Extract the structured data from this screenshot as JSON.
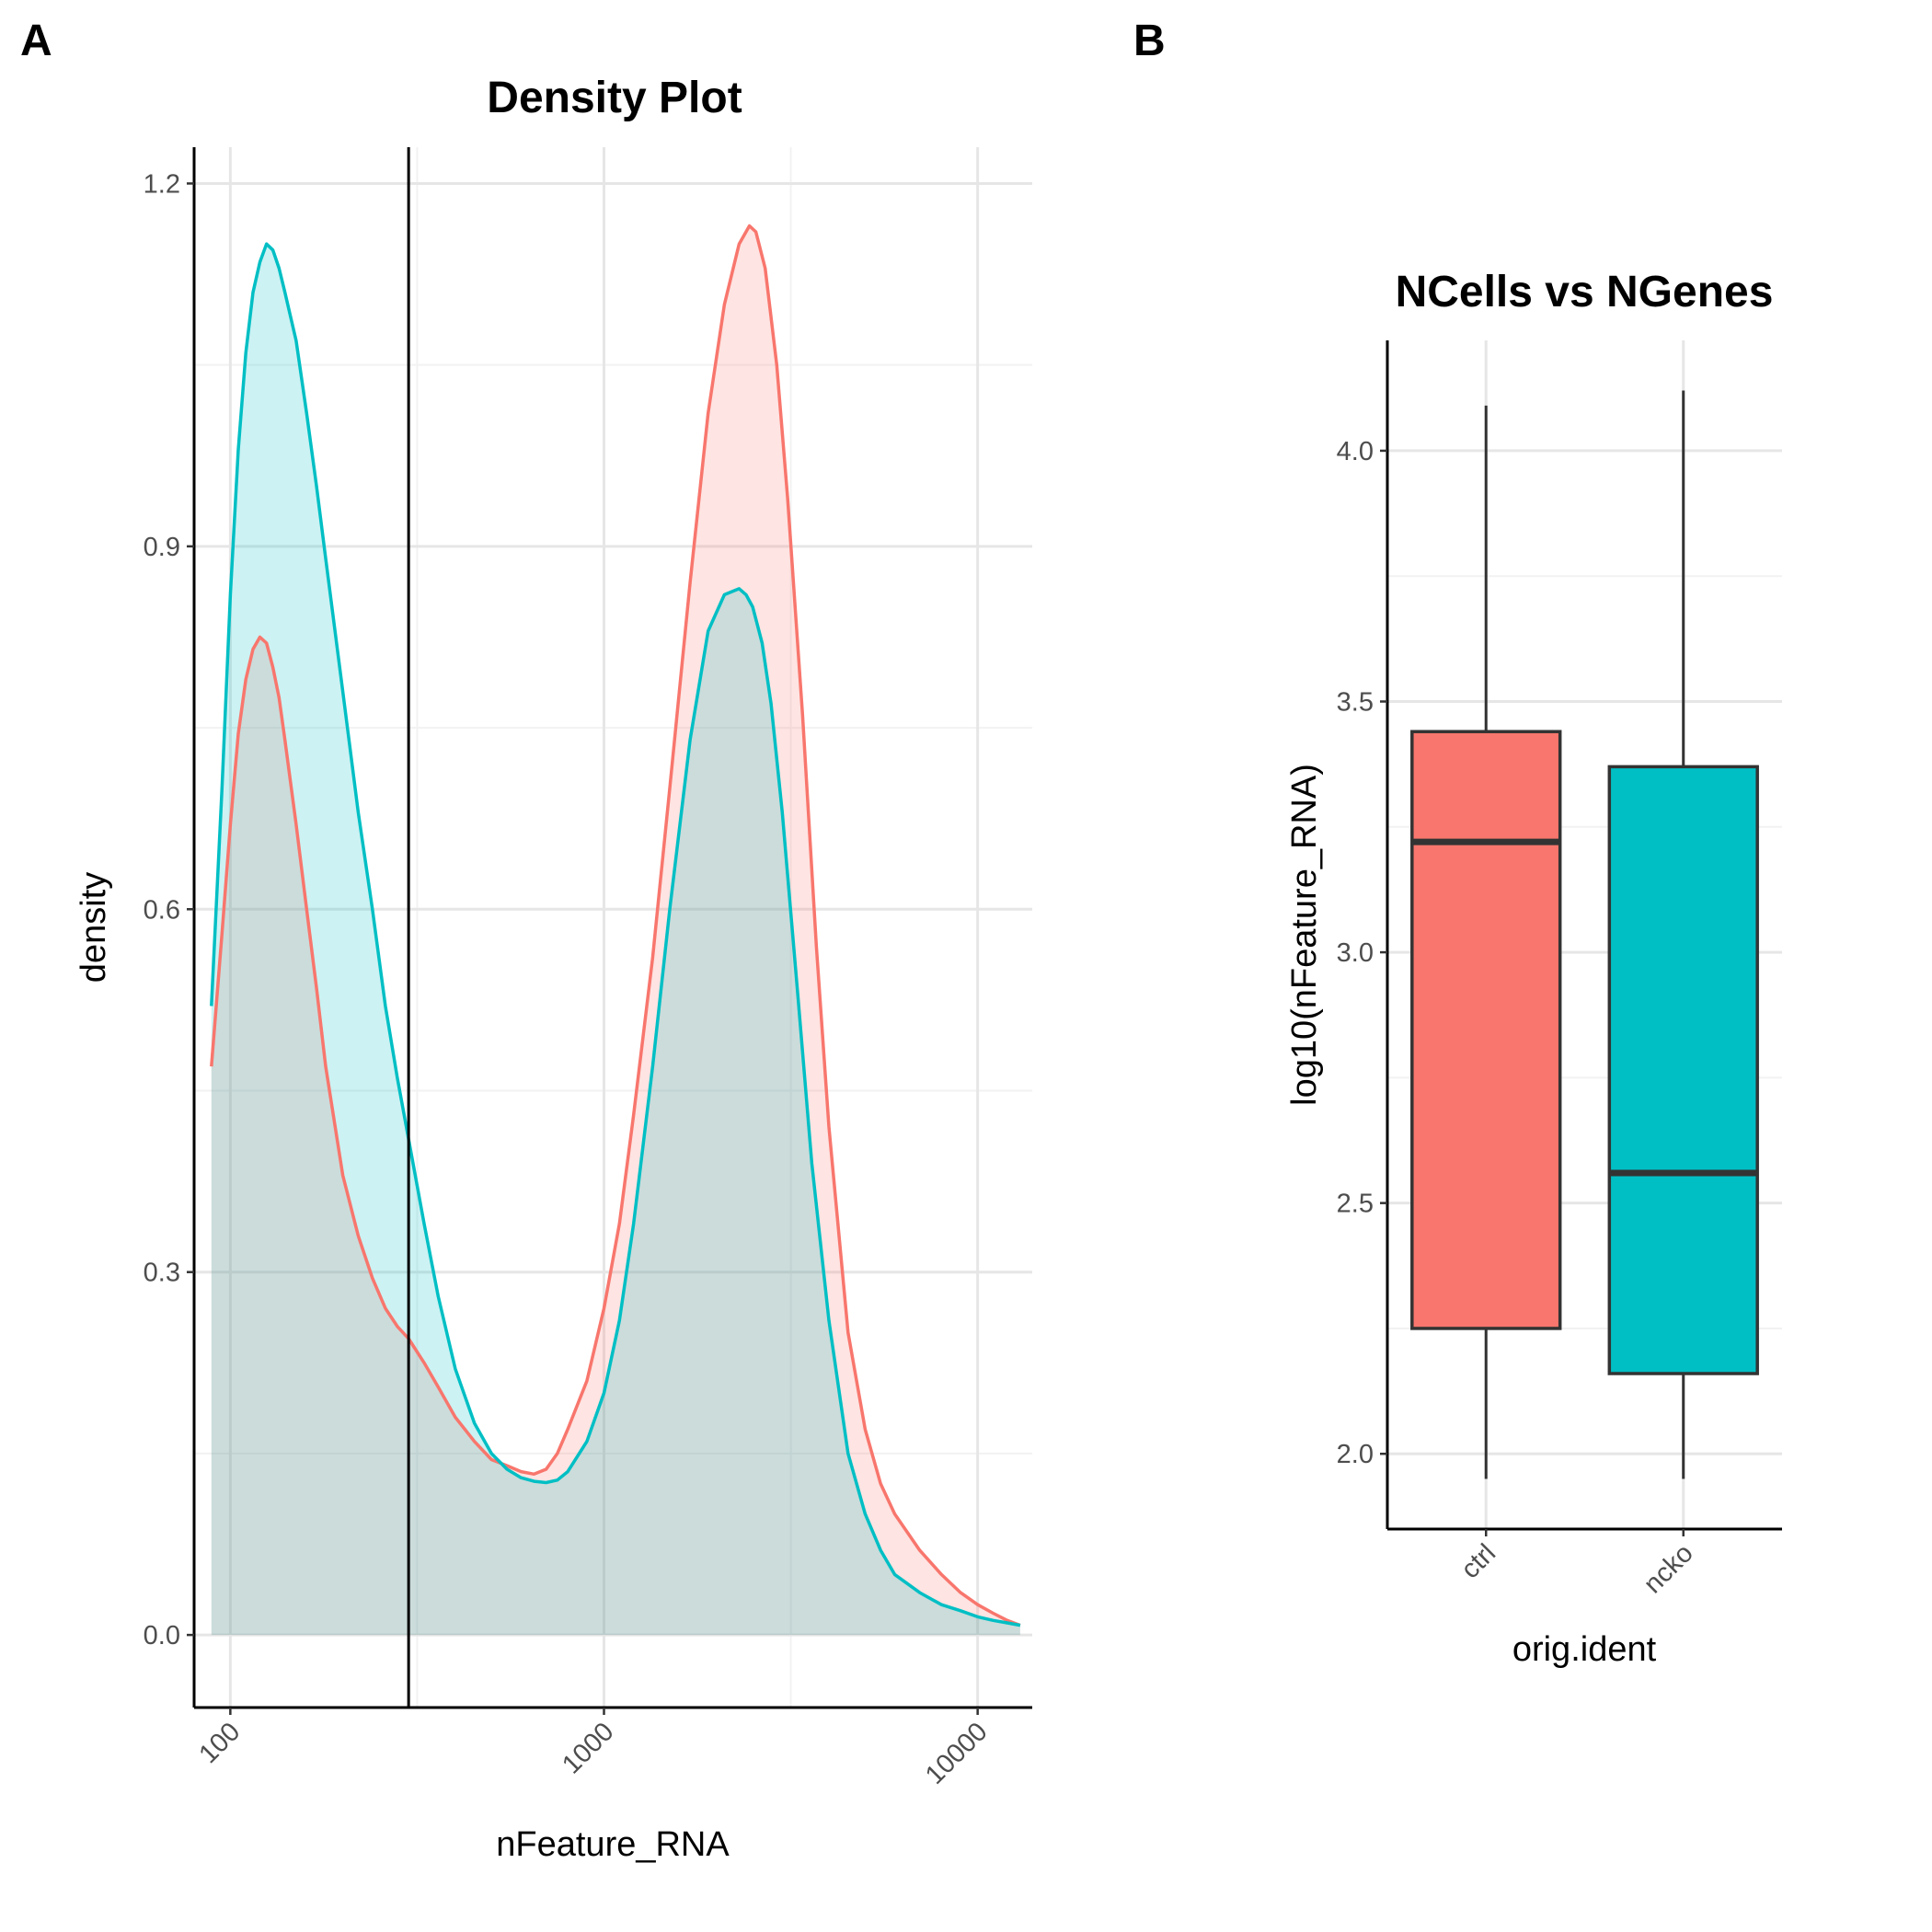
{
  "panel_labels": [
    "A",
    "B"
  ],
  "chart_data": [
    {
      "type": "area",
      "title": "Density Plot",
      "xlabel": "nFeature_RNA",
      "ylabel": "density",
      "x_scale": "log10",
      "xlim": [
        80,
        14000
      ],
      "ylim": [
        -0.06,
        1.23
      ],
      "x_ticks": [
        100,
        1000,
        10000
      ],
      "x_tick_labels": [
        "100",
        "1000",
        "10000"
      ],
      "y_ticks": [
        0,
        0.3,
        0.6,
        0.9,
        1.2
      ],
      "y_tick_labels": [
        "0.0",
        "0.3",
        "0.6",
        "0.9",
        "1.2"
      ],
      "grid": true,
      "legend": "none",
      "vline": 300,
      "series": [
        {
          "color": "#F8766D",
          "fill": "#FDE0DE",
          "x": [
            89,
            95,
            100,
            105,
            110,
            115,
            120,
            125,
            130,
            135,
            140,
            150,
            160,
            170,
            180,
            200,
            220,
            240,
            260,
            280,
            300,
            330,
            360,
            400,
            450,
            500,
            550,
            600,
            650,
            700,
            750,
            800,
            900,
            1000,
            1100,
            1200,
            1350,
            1500,
            1700,
            1900,
            2100,
            2300,
            2450,
            2550,
            2700,
            2900,
            3100,
            3400,
            3700,
            4000,
            4500,
            5000,
            5500,
            6000,
            7000,
            8000,
            9000,
            10000,
            11000,
            12000,
            13000
          ],
          "y": [
            0.47,
            0.58,
            0.67,
            0.745,
            0.79,
            0.815,
            0.825,
            0.82,
            0.8,
            0.775,
            0.74,
            0.67,
            0.6,
            0.535,
            0.47,
            0.38,
            0.33,
            0.295,
            0.27,
            0.255,
            0.245,
            0.225,
            0.205,
            0.18,
            0.16,
            0.145,
            0.14,
            0.135,
            0.133,
            0.137,
            0.15,
            0.17,
            0.21,
            0.27,
            0.34,
            0.43,
            0.56,
            0.7,
            0.87,
            1.01,
            1.1,
            1.15,
            1.165,
            1.16,
            1.13,
            1.05,
            0.94,
            0.76,
            0.57,
            0.42,
            0.25,
            0.17,
            0.125,
            0.1,
            0.07,
            0.05,
            0.035,
            0.025,
            0.018,
            0.012,
            0.008
          ]
        },
        {
          "color": "#00BFC4",
          "fill": "#CCEFF1",
          "x": [
            89,
            95,
            100,
            105,
            110,
            115,
            120,
            125,
            130,
            135,
            140,
            150,
            160,
            170,
            180,
            200,
            220,
            240,
            260,
            280,
            300,
            330,
            360,
            400,
            450,
            500,
            550,
            600,
            650,
            700,
            750,
            800,
            900,
            1000,
            1100,
            1200,
            1350,
            1500,
            1700,
            1900,
            2100,
            2300,
            2400,
            2500,
            2650,
            2800,
            3000,
            3300,
            3600,
            4000,
            4500,
            5000,
            5500,
            6000,
            7000,
            8000,
            9000,
            10000,
            11000,
            12000,
            13000
          ],
          "y": [
            0.52,
            0.7,
            0.86,
            0.98,
            1.06,
            1.11,
            1.135,
            1.15,
            1.145,
            1.13,
            1.11,
            1.07,
            1.01,
            0.95,
            0.89,
            0.78,
            0.68,
            0.6,
            0.52,
            0.46,
            0.41,
            0.34,
            0.28,
            0.22,
            0.175,
            0.15,
            0.137,
            0.13,
            0.127,
            0.126,
            0.128,
            0.135,
            0.16,
            0.2,
            0.26,
            0.34,
            0.47,
            0.6,
            0.74,
            0.83,
            0.86,
            0.865,
            0.86,
            0.85,
            0.82,
            0.77,
            0.68,
            0.53,
            0.39,
            0.26,
            0.15,
            0.1,
            0.07,
            0.05,
            0.035,
            0.025,
            0.02,
            0.015,
            0.012,
            0.01,
            0.008
          ]
        }
      ]
    },
    {
      "type": "box",
      "title": "NCells vs NGenes",
      "xlabel": "orig.ident",
      "ylabel": "log10(nFeature_RNA)",
      "categories": [
        "ctrl",
        "ncko"
      ],
      "ylim": [
        1.85,
        4.22
      ],
      "y_ticks": [
        2.0,
        2.5,
        3.0,
        3.5,
        4.0
      ],
      "y_tick_labels": [
        "2.0",
        "2.5",
        "3.0",
        "3.5",
        "4.0"
      ],
      "grid": true,
      "legend": "none",
      "boxes": [
        {
          "category": "ctrl",
          "color": "#F8766D",
          "whisker_low": 1.95,
          "q1": 2.25,
          "median": 3.22,
          "q3": 3.44,
          "whisker_high": 4.09
        },
        {
          "category": "ncko",
          "color": "#00BFC4",
          "whisker_low": 1.95,
          "q1": 2.16,
          "median": 2.56,
          "q3": 3.37,
          "whisker_high": 4.12
        }
      ]
    }
  ]
}
